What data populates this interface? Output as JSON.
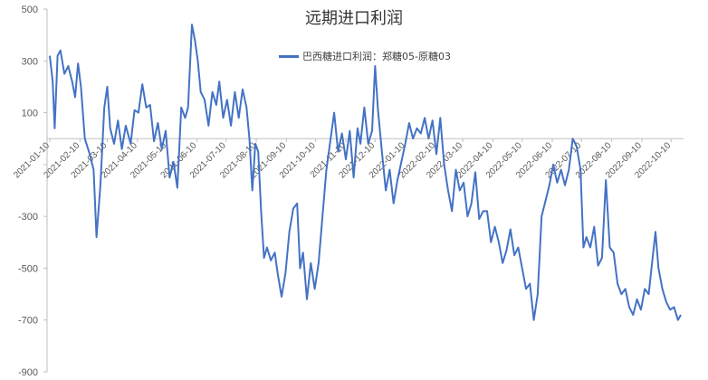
{
  "chart_data": {
    "type": "line",
    "title": "远期进口利润",
    "xlabel": "",
    "ylabel": "",
    "ylim": [
      -900,
      500
    ],
    "y_ticks": [
      500,
      300,
      100,
      -100,
      -300,
      -500,
      -700,
      -900
    ],
    "y_tick_labels": [
      "500",
      "300",
      "100",
      "",
      "-300",
      "-500",
      "-700",
      "-900"
    ],
    "x_tick_labels": [
      "2021-01-10",
      "2021-02-10",
      "2021-03-10",
      "2021-04-10",
      "2021-05-10",
      "2021-06-10",
      "2021-07-10",
      "2021-08-10",
      "2021-09-10",
      "2021-10-10",
      "2021-11-10",
      "2021-12-10",
      "2022-01-10",
      "2022-02-10",
      "2022-03-10",
      "2022-04-10",
      "2022-05-10",
      "2022-06-10",
      "2022-07-10",
      "2022-08-10",
      "2022-09-10",
      "2022-10-10"
    ],
    "x_range": [
      "2021-01-10",
      "2022-10-20"
    ],
    "legend_position": "top-center",
    "grid": false,
    "series": [
      {
        "name": "巴西糖进口利润：郑糖05-原糖03",
        "color": "#4472C4",
        "points": [
          [
            "2021-01-10",
            320
          ],
          [
            "2021-01-13",
            220
          ],
          [
            "2021-01-15",
            40
          ],
          [
            "2021-01-18",
            320
          ],
          [
            "2021-01-21",
            340
          ],
          [
            "2021-01-25",
            250
          ],
          [
            "2021-01-29",
            280
          ],
          [
            "2021-02-02",
            220
          ],
          [
            "2021-02-05",
            160
          ],
          [
            "2021-02-08",
            290
          ],
          [
            "2021-02-11",
            200
          ],
          [
            "2021-02-15",
            0
          ],
          [
            "2021-02-20",
            -60
          ],
          [
            "2021-02-24",
            -120
          ],
          [
            "2021-02-27",
            -380
          ],
          [
            "2021-03-03",
            -180
          ],
          [
            "2021-03-07",
            120
          ],
          [
            "2021-03-10",
            200
          ],
          [
            "2021-03-13",
            40
          ],
          [
            "2021-03-17",
            -20
          ],
          [
            "2021-03-21",
            70
          ],
          [
            "2021-03-25",
            -40
          ],
          [
            "2021-03-29",
            50
          ],
          [
            "2021-04-03",
            -20
          ],
          [
            "2021-04-07",
            110
          ],
          [
            "2021-04-11",
            100
          ],
          [
            "2021-04-15",
            210
          ],
          [
            "2021-04-19",
            120
          ],
          [
            "2021-04-23",
            130
          ],
          [
            "2021-04-27",
            -10
          ],
          [
            "2021-05-01",
            60
          ],
          [
            "2021-05-05",
            -40
          ],
          [
            "2021-05-09",
            30
          ],
          [
            "2021-05-13",
            -150
          ],
          [
            "2021-05-17",
            -90
          ],
          [
            "2021-05-21",
            -190
          ],
          [
            "2021-05-25",
            120
          ],
          [
            "2021-05-29",
            80
          ],
          [
            "2021-06-01",
            120
          ],
          [
            "2021-06-05",
            440
          ],
          [
            "2021-06-08",
            380
          ],
          [
            "2021-06-11",
            300
          ],
          [
            "2021-06-14",
            180
          ],
          [
            "2021-06-18",
            150
          ],
          [
            "2021-06-22",
            50
          ],
          [
            "2021-06-26",
            180
          ],
          [
            "2021-06-30",
            130
          ],
          [
            "2021-07-03",
            220
          ],
          [
            "2021-07-07",
            80
          ],
          [
            "2021-07-11",
            150
          ],
          [
            "2021-07-15",
            50
          ],
          [
            "2021-07-19",
            180
          ],
          [
            "2021-07-23",
            80
          ],
          [
            "2021-07-27",
            190
          ],
          [
            "2021-07-31",
            120
          ],
          [
            "2021-08-03",
            0
          ],
          [
            "2021-08-06",
            -200
          ],
          [
            "2021-08-09",
            -20
          ],
          [
            "2021-08-12",
            -50
          ],
          [
            "2021-08-15",
            -280
          ],
          [
            "2021-08-18",
            -460
          ],
          [
            "2021-08-21",
            -420
          ],
          [
            "2021-08-25",
            -470
          ],
          [
            "2021-08-29",
            -440
          ],
          [
            "2021-09-01",
            -520
          ],
          [
            "2021-09-05",
            -610
          ],
          [
            "2021-09-09",
            -520
          ],
          [
            "2021-09-13",
            -360
          ],
          [
            "2021-09-17",
            -270
          ],
          [
            "2021-09-21",
            -250
          ],
          [
            "2021-09-24",
            -500
          ],
          [
            "2021-09-27",
            -440
          ],
          [
            "2021-10-01",
            -620
          ],
          [
            "2021-10-05",
            -480
          ],
          [
            "2021-10-09",
            -580
          ],
          [
            "2021-10-13",
            -480
          ],
          [
            "2021-10-17",
            -300
          ],
          [
            "2021-10-21",
            -120
          ],
          [
            "2021-10-25",
            -10
          ],
          [
            "2021-10-29",
            100
          ],
          [
            "2021-11-02",
            -50
          ],
          [
            "2021-11-06",
            20
          ],
          [
            "2021-11-10",
            -80
          ],
          [
            "2021-11-14",
            30
          ],
          [
            "2021-11-18",
            -150
          ],
          [
            "2021-11-22",
            40
          ],
          [
            "2021-11-25",
            -20
          ],
          [
            "2021-11-29",
            120
          ],
          [
            "2021-12-03",
            -20
          ],
          [
            "2021-12-07",
            30
          ],
          [
            "2021-12-10",
            280
          ],
          [
            "2021-12-13",
            110
          ],
          [
            "2021-12-17",
            -50
          ],
          [
            "2021-12-21",
            -200
          ],
          [
            "2021-12-25",
            -120
          ],
          [
            "2021-12-29",
            -250
          ],
          [
            "2022-01-02",
            -160
          ],
          [
            "2022-01-06",
            -90
          ],
          [
            "2022-01-10",
            -20
          ],
          [
            "2022-01-14",
            60
          ],
          [
            "2022-01-18",
            0
          ],
          [
            "2022-01-22",
            40
          ],
          [
            "2022-01-26",
            20
          ],
          [
            "2022-01-30",
            80
          ],
          [
            "2022-02-03",
            0
          ],
          [
            "2022-02-07",
            70
          ],
          [
            "2022-02-11",
            -60
          ],
          [
            "2022-02-15",
            80
          ],
          [
            "2022-02-19",
            -100
          ],
          [
            "2022-02-23",
            -200
          ],
          [
            "2022-02-27",
            -280
          ],
          [
            "2022-03-03",
            -120
          ],
          [
            "2022-03-07",
            -200
          ],
          [
            "2022-03-11",
            -170
          ],
          [
            "2022-03-15",
            -300
          ],
          [
            "2022-03-19",
            -250
          ],
          [
            "2022-03-23",
            -130
          ],
          [
            "2022-03-27",
            -310
          ],
          [
            "2022-03-31",
            -280
          ],
          [
            "2022-04-04",
            -280
          ],
          [
            "2022-04-08",
            -400
          ],
          [
            "2022-04-12",
            -340
          ],
          [
            "2022-04-16",
            -400
          ],
          [
            "2022-04-20",
            -480
          ],
          [
            "2022-04-24",
            -430
          ],
          [
            "2022-04-28",
            -350
          ],
          [
            "2022-05-02",
            -450
          ],
          [
            "2022-05-06",
            -420
          ],
          [
            "2022-05-10",
            -500
          ],
          [
            "2022-05-14",
            -580
          ],
          [
            "2022-05-18",
            -560
          ],
          [
            "2022-05-22",
            -700
          ],
          [
            "2022-05-26",
            -600
          ],
          [
            "2022-05-30",
            -300
          ],
          [
            "2022-06-03",
            -240
          ],
          [
            "2022-06-07",
            -180
          ],
          [
            "2022-06-11",
            -100
          ],
          [
            "2022-06-15",
            -170
          ],
          [
            "2022-06-19",
            -120
          ],
          [
            "2022-06-23",
            -180
          ],
          [
            "2022-06-27",
            -120
          ],
          [
            "2022-07-01",
            0
          ],
          [
            "2022-07-05",
            -30
          ],
          [
            "2022-07-09",
            -120
          ],
          [
            "2022-07-12",
            -420
          ],
          [
            "2022-07-15",
            -380
          ],
          [
            "2022-07-19",
            -420
          ],
          [
            "2022-07-23",
            -340
          ],
          [
            "2022-07-27",
            -490
          ],
          [
            "2022-07-31",
            -460
          ],
          [
            "2022-08-04",
            -160
          ],
          [
            "2022-08-08",
            -420
          ],
          [
            "2022-08-12",
            -440
          ],
          [
            "2022-08-16",
            -560
          ],
          [
            "2022-08-20",
            -600
          ],
          [
            "2022-08-24",
            -580
          ],
          [
            "2022-08-28",
            -650
          ],
          [
            "2022-09-01",
            -680
          ],
          [
            "2022-09-05",
            -620
          ],
          [
            "2022-09-09",
            -660
          ],
          [
            "2022-09-13",
            -580
          ],
          [
            "2022-09-17",
            -600
          ],
          [
            "2022-09-21",
            -460
          ],
          [
            "2022-09-24",
            -360
          ],
          [
            "2022-09-27",
            -500
          ],
          [
            "2022-10-01",
            -580
          ],
          [
            "2022-10-05",
            -630
          ],
          [
            "2022-10-09",
            -660
          ],
          [
            "2022-10-13",
            -650
          ],
          [
            "2022-10-17",
            -700
          ],
          [
            "2022-10-20",
            -680
          ]
        ]
      }
    ]
  }
}
